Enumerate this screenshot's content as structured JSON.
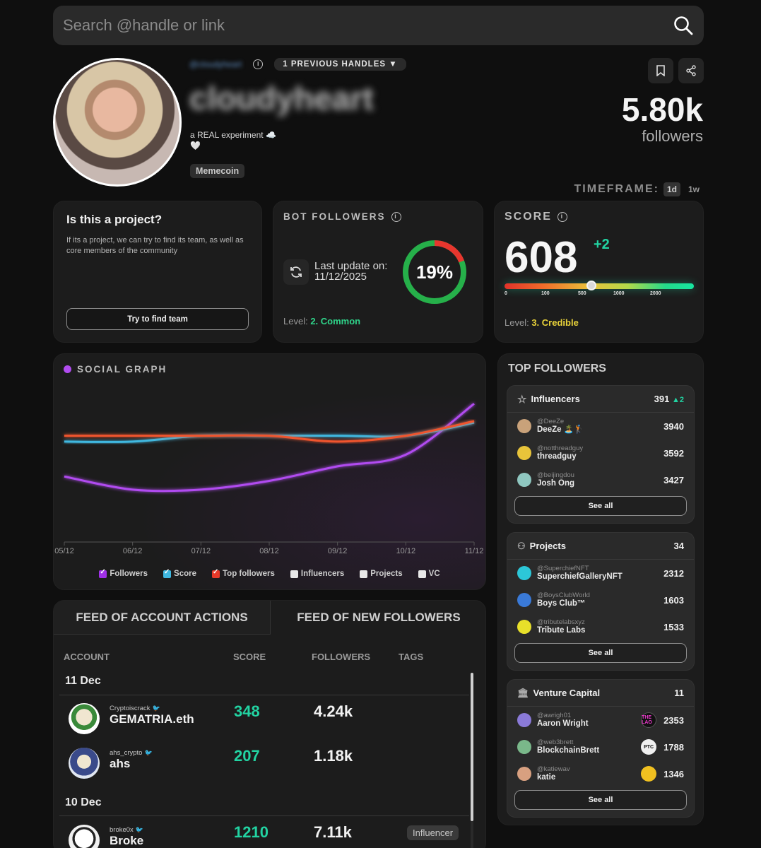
{
  "search": {
    "placeholder": "Search @handle or link"
  },
  "profile": {
    "handle": "@cloudyheart",
    "previous_handles": "1 PREVIOUS HANDLES ▼",
    "display_name": "cloudyheart",
    "bio": "a REAL experiment ☁️\n🤍",
    "tag": "Memecoin",
    "followers_count": "5.80k",
    "followers_label": "followers"
  },
  "timeframe": {
    "label": "TIMEFRAME:",
    "options": [
      "1d",
      "1w"
    ],
    "active": "1d"
  },
  "project_card": {
    "title": "Is this a project?",
    "description": "If its a project, we can try to find its team, as well as core members of the community",
    "button": "Try to find team"
  },
  "bot_card": {
    "title": "BOT FOLLOWERS",
    "last_update_label": "Last update on:",
    "last_update_date": "11/12/2025",
    "percent": 19,
    "percent_text": "19%",
    "level_label": "Level:",
    "level_value": "2. Common",
    "level_color": "#2fd48a"
  },
  "score_card": {
    "title": "SCORE",
    "value": "608",
    "delta": "+2",
    "scale_ticks": [
      "0",
      "100",
      "500",
      "1000",
      "2000"
    ],
    "level_label": "Level:",
    "level_value": "3. Credible",
    "level_color": "#e8d23a"
  },
  "social_graph": {
    "title": "SOCIAL GRAPH",
    "legend": [
      {
        "label": "Followers",
        "checked": true,
        "color": "#a030e8"
      },
      {
        "label": "Score",
        "checked": true,
        "color": "#3fb8e0"
      },
      {
        "label": "Top followers",
        "checked": true,
        "color": "#e83a2a"
      },
      {
        "label": "Influencers",
        "checked": false,
        "color": "#e8e8e8"
      },
      {
        "label": "Projects",
        "checked": false,
        "color": "#e8e8e8"
      },
      {
        "label": "VC",
        "checked": false,
        "color": "#e8e8e8"
      }
    ]
  },
  "chart_data": {
    "type": "line",
    "title": "SOCIAL GRAPH",
    "x": [
      "05/12",
      "06/12",
      "07/12",
      "08/12",
      "09/12",
      "10/12",
      "11/12"
    ],
    "series": [
      {
        "name": "Followers",
        "color": "#b14cf0",
        "values": [
          45,
          36,
          36,
          42,
          52,
          60,
          95
        ],
        "normalized": true
      },
      {
        "name": "Score",
        "color": "#3fb8e0",
        "values": [
          69,
          69,
          73,
          73,
          73,
          73,
          82
        ],
        "normalized": true
      },
      {
        "name": "Top followers",
        "color": "#f0552e",
        "values": [
          73,
          73,
          73,
          73,
          69,
          73,
          83
        ],
        "normalized": true
      }
    ],
    "ylim": [
      0,
      100
    ],
    "grid": false,
    "legend_position": "bottom"
  },
  "top_followers": {
    "title": "TOP FOLLOWERS",
    "influencers": {
      "title": "Influencers",
      "count": "391",
      "delta": "▲2",
      "items": [
        {
          "handle": "@DeeZe",
          "name": "DeeZe 🏝️🏌️",
          "value": "3940",
          "color": "#c9a27a"
        },
        {
          "handle": "@notthreadguy",
          "name": "threadguy",
          "value": "3592",
          "color": "#e8c43a"
        },
        {
          "handle": "@beijingdou",
          "name": "Josh Ong",
          "value": "3427",
          "color": "#8fc7c0"
        }
      ],
      "see_all": "See all"
    },
    "projects": {
      "title": "Projects",
      "count": "34",
      "items": [
        {
          "handle": "@SuperchiefNFT",
          "name": "SuperchiefGalleryNFT",
          "value": "2312",
          "color": "#2cc7d8"
        },
        {
          "handle": "@BoysClubWorld",
          "name": "Boys Club™",
          "value": "1603",
          "color": "#3a7ad8"
        },
        {
          "handle": "@tributelabsxyz",
          "name": "Tribute Labs",
          "value": "1533",
          "color": "#e8e02a"
        }
      ],
      "see_all": "See all"
    },
    "vc": {
      "title": "Venture Capital",
      "count": "11",
      "items": [
        {
          "handle": "@awrigh01",
          "name": "Aaron Wright",
          "value": "2353",
          "logo": "THE LAO",
          "logo_bg": "#111",
          "logo_fg": "#e838c8",
          "color": "#8a7ad8"
        },
        {
          "handle": "@web3brett",
          "name": "BlockchainBrett",
          "value": "1788",
          "logo": "PTC",
          "logo_bg": "#f0f0f0",
          "logo_fg": "#111",
          "color": "#7ab88a"
        },
        {
          "handle": "@katiewav",
          "name": "katie",
          "value": "1346",
          "logo": "",
          "logo_bg": "#f0c020",
          "logo_fg": "#111",
          "color": "#d8a080"
        }
      ],
      "see_all": "See all"
    }
  },
  "feed": {
    "tabs": [
      "FEED OF ACCOUNT ACTIONS",
      "FEED OF NEW FOLLOWERS"
    ],
    "columns": [
      "ACCOUNT",
      "SCORE",
      "FOLLOWERS",
      "TAGS"
    ],
    "groups": [
      {
        "date": "11 Dec",
        "rows": [
          {
            "handle": "Cryptoiscrack",
            "name": "GEMATRIA.eth",
            "score": "348",
            "followers": "4.24k",
            "tag": "",
            "avatar_color": "#3a8a3a"
          },
          {
            "handle": "ahs_crypto",
            "name": "ahs",
            "score": "207",
            "followers": "1.18k",
            "tag": "",
            "avatar_color": "#3a4a8a"
          }
        ]
      },
      {
        "date": "10 Dec",
        "rows": [
          {
            "handle": "broke0x",
            "name": "Broke",
            "score": "1210",
            "followers": "7.11k",
            "tag": "Influencer",
            "avatar_color": "#e8e8e8"
          }
        ]
      }
    ]
  }
}
